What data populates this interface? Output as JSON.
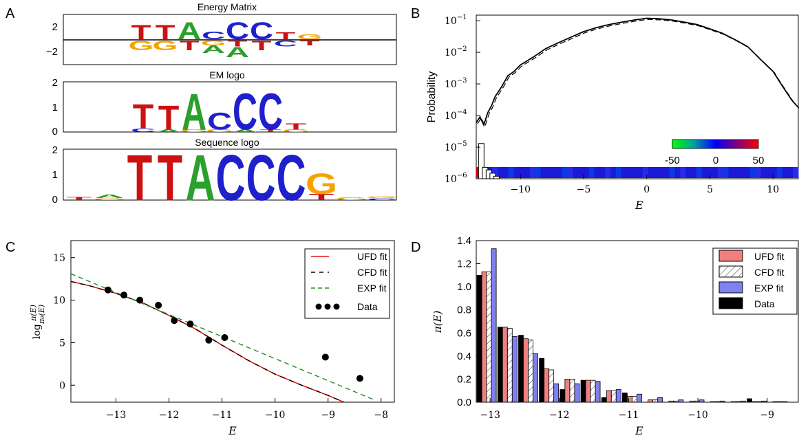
{
  "panels": {
    "A": {
      "label": "A",
      "logos": [
        {
          "title": "Energy Matrix",
          "yticks": [
            "2",
            "−2"
          ],
          "columns": [
            {
              "up": [
                [
                  "T",
                  3
                ]
              ],
              "down": [
                [
                  "G",
                  2
                ]
              ]
            },
            {
              "up": [
                [
                  "T",
                  3
                ]
              ],
              "down": [
                [
                  "G",
                  2
                ]
              ]
            },
            {
              "up": [
                [
                  "A",
                  3.6
                ]
              ],
              "down": [
                [
                  "T",
                  2
                ]
              ]
            },
            {
              "up": [
                [
                  "C",
                  1.6
                ]
              ],
              "down": [
                [
                  "G",
                  1
                ],
                [
                  "A",
                  1.6
                ]
              ]
            },
            {
              "up": [
                [
                  "C",
                  3.6
                ]
              ],
              "down": [
                [
                  "T",
                  1.2
                ],
                [
                  "A",
                  2.2
                ]
              ]
            },
            {
              "up": [
                [
                  "C",
                  3.6
                ]
              ],
              "down": [
                [
                  "T",
                  2
                ]
              ]
            },
            {
              "up": [
                [
                  "T",
                  1.5
                ]
              ],
              "down": [
                [
                  "C",
                  1.2
                ]
              ]
            },
            {
              "up": [
                [
                  "G",
                  1
                ]
              ],
              "down": [
                [
                  "T",
                  1
                ]
              ]
            }
          ]
        },
        {
          "title": "EM logo",
          "yticks": [
            "2",
            "1",
            "0"
          ],
          "columns": [
            {
              "stack": [
                [
                  "C",
                  0.15
                ],
                [
                  "T",
                  1.0
                ]
              ]
            },
            {
              "stack": [
                [
                  "A",
                  0.1
                ],
                [
                  "T",
                  1.0
                ]
              ]
            },
            {
              "stack": [
                [
                  "G",
                  0.1
                ],
                [
                  "A",
                  1.5
                ]
              ]
            },
            {
              "stack": [
                [
                  "G",
                  0.1
                ],
                [
                  "C",
                  0.7
                ]
              ]
            },
            {
              "stack": [
                [
                  "A",
                  0.1
                ],
                [
                  "C",
                  1.5
                ]
              ]
            },
            {
              "stack": [
                [
                  "T",
                  0.1
                ],
                [
                  "C",
                  1.5
                ]
              ]
            },
            {
              "stack": [
                [
                  "G",
                  0.1
                ],
                [
                  "T",
                  0.25
                ]
              ]
            }
          ]
        },
        {
          "title": "Sequence logo",
          "yticks": [
            "2",
            "1",
            "0"
          ],
          "columns": [
            {
              "stack": [
                [
                  "T",
                  0.12
                ]
              ]
            },
            {
              "stack": [
                [
                  "G",
                  0.08
                ],
                [
                  "A",
                  0.15
                ]
              ]
            },
            {
              "stack": [
                [
                  "T",
                  1.9
                ]
              ]
            },
            {
              "stack": [
                [
                  "T",
                  1.9
                ]
              ]
            },
            {
              "stack": [
                [
                  "A",
                  1.9
                ]
              ]
            },
            {
              "stack": [
                [
                  "C",
                  1.9
                ]
              ]
            },
            {
              "stack": [
                [
                  "C",
                  1.9
                ]
              ]
            },
            {
              "stack": [
                [
                  "C",
                  1.9
                ]
              ]
            },
            {
              "stack": [
                [
                  "T",
                  0.25
                ],
                [
                  "G",
                  0.85
                ]
              ]
            },
            {
              "stack": [
                [
                  "G",
                  0.1
                ]
              ]
            },
            {
              "stack": [
                [
                  "C",
                  0.08
                ],
                [
                  "G",
                  0.08
                ]
              ]
            }
          ]
        }
      ]
    },
    "B": {
      "label": "B",
      "ylabel": "Probability",
      "xlabel": "E",
      "colorbar_ticks": [
        "-50",
        "0",
        "50"
      ],
      "yticks": [
        "10",
        "10",
        "10",
        "10",
        "10",
        "10"
      ],
      "yexps": [
        "−6",
        "−5",
        "−4",
        "−3",
        "−2",
        "−1"
      ],
      "xticks": [
        "−10",
        "−5",
        "0",
        "5",
        "10"
      ]
    },
    "C": {
      "label": "C",
      "xlabel": "E",
      "yticks": [
        "0",
        "5",
        "10",
        "15"
      ],
      "xticks": [
        "−13",
        "−12",
        "−11",
        "−10",
        "−9",
        "−8"
      ],
      "legend": [
        {
          "label": "UFD fit",
          "style": "red-solid"
        },
        {
          "label": "CFD fit",
          "style": "black-dash"
        },
        {
          "label": "EXP fit",
          "style": "green-dash"
        },
        {
          "label": "Data",
          "style": "dots"
        }
      ]
    },
    "D": {
      "label": "D",
      "xlabel": "E",
      "yticks": [
        "0.0",
        "0.2",
        "0.4",
        "0.6",
        "0.8",
        "1.0",
        "1.2",
        "1.4"
      ],
      "xticks": [
        "−13",
        "−12",
        "−11",
        "−10",
        "−9"
      ],
      "legend": [
        "UFD fit",
        "CFD fit",
        "EXP fit",
        "Data"
      ]
    }
  },
  "colors": {
    "A": "#2ca02c",
    "C": "#1f1fcc",
    "G": "#f5a300",
    "T": "#cc1111",
    "ufd": "#f08080",
    "exp": "#8080f0",
    "green": "#228b22"
  },
  "chart_data": [
    {
      "type": "line",
      "panel": "B",
      "scale": "log",
      "xlim": [
        -13.5,
        12
      ],
      "ylim": [
        1e-06,
        0.15
      ],
      "series": [
        {
          "x": [
            -13.5,
            -13.2,
            -12.9,
            -12.6,
            -12.3,
            -12,
            -11.5,
            -11,
            -10.5,
            -10,
            -9,
            -8,
            -7,
            -6,
            -5,
            -4,
            -3,
            -2,
            -1,
            0,
            1,
            2,
            3,
            4,
            5,
            6,
            7,
            8,
            9,
            10,
            10.5,
            11,
            11.5,
            12
          ],
          "values": [
            6e-05,
            9e-05,
            5e-05,
            0.00012,
            0.0002,
            0.0004,
            0.0008,
            0.0018,
            0.0025,
            0.004,
            0.007,
            0.013,
            0.02,
            0.03,
            0.045,
            0.06,
            0.075,
            0.09,
            0.105,
            0.12,
            0.115,
            0.105,
            0.09,
            0.075,
            0.055,
            0.04,
            0.025,
            0.015,
            0.006,
            0.0025,
            0.0012,
            0.0006,
            0.0003,
            0.00018
          ]
        }
      ],
      "histogram_bars": [
        {
          "x": -13.1,
          "value": 1.3e-05
        },
        {
          "x": -12.8,
          "value": 2.3e-06
        },
        {
          "x": -12.5,
          "value": 1.9e-06
        },
        {
          "x": -12.2,
          "value": 1.5e-06
        },
        {
          "x": -11.9,
          "value": 1.2e-06
        }
      ],
      "colorbar_range": [
        -50,
        50
      ]
    },
    {
      "type": "scatter",
      "panel": "C",
      "xlim": [
        -13.85,
        -7.75
      ],
      "ylim": [
        -2,
        17
      ],
      "data_points": {
        "x": [
          -13.15,
          -12.85,
          -12.55,
          -12.2,
          -11.9,
          -11.6,
          -11.25,
          -10.95,
          -9.05,
          -8.4
        ],
        "values": [
          11.2,
          10.6,
          10.0,
          9.4,
          7.6,
          7.2,
          5.3,
          5.6,
          3.3,
          0.8
        ]
      },
      "series": [
        {
          "name": "UFD fit",
          "x": [
            -13.85,
            -13.5,
            -13,
            -12.5,
            -12,
            -11.5,
            -11,
            -10.5,
            -10,
            -9.5,
            -9,
            -8.7
          ],
          "values": [
            12.2,
            11.7,
            10.8,
            9.7,
            8.2,
            6.6,
            4.7,
            2.9,
            1.3,
            0.0,
            -1.2,
            -2.0
          ]
        },
        {
          "name": "CFD fit",
          "x": [
            -13.85,
            -13.5,
            -13,
            -12.5,
            -12,
            -11.5,
            -11,
            -10.5,
            -10,
            -9.5,
            -9,
            -8.7
          ],
          "values": [
            12.2,
            11.7,
            10.8,
            9.7,
            8.2,
            6.6,
            4.7,
            2.9,
            1.3,
            0.0,
            -1.2,
            -2.0
          ]
        },
        {
          "name": "EXP fit",
          "x": [
            -13.85,
            -8.1
          ],
          "values": [
            13.1,
            -1.8
          ]
        }
      ]
    },
    {
      "type": "bar",
      "panel": "D",
      "xlim": [
        -13.2,
        -8.55
      ],
      "ylim": [
        0,
        1.4
      ],
      "x": [
        -13.05,
        -12.75,
        -12.45,
        -12.15,
        -11.85,
        -11.55,
        -11.25,
        -10.95,
        -10.65,
        -10.35,
        -10.05,
        -9.75,
        -9.45,
        -9.15,
        -8.85
      ],
      "series": [
        {
          "name": "Data",
          "values": [
            1.1,
            0.65,
            0.58,
            0.38,
            0.11,
            0.19,
            0.04,
            0.08,
            0.0,
            0.0,
            0.0,
            0.0,
            0.0,
            0.03,
            0.0
          ]
        },
        {
          "name": "UFD fit",
          "values": [
            1.13,
            0.65,
            0.55,
            0.29,
            0.2,
            0.19,
            0.1,
            0.05,
            0.02,
            0.01,
            0.01,
            0.005,
            0.005,
            0.005,
            0.005
          ]
        },
        {
          "name": "CFD fit",
          "values": [
            1.13,
            0.64,
            0.54,
            0.28,
            0.2,
            0.19,
            0.1,
            0.05,
            0.02,
            0.01,
            0.01,
            0.005,
            0.005,
            0.005,
            0.005
          ]
        },
        {
          "name": "EXP fit",
          "values": [
            1.33,
            0.57,
            0.42,
            0.16,
            0.16,
            0.18,
            0.11,
            0.07,
            0.04,
            0.02,
            0.02,
            0.01,
            0.01,
            0.01,
            0.005
          ]
        }
      ]
    }
  ]
}
